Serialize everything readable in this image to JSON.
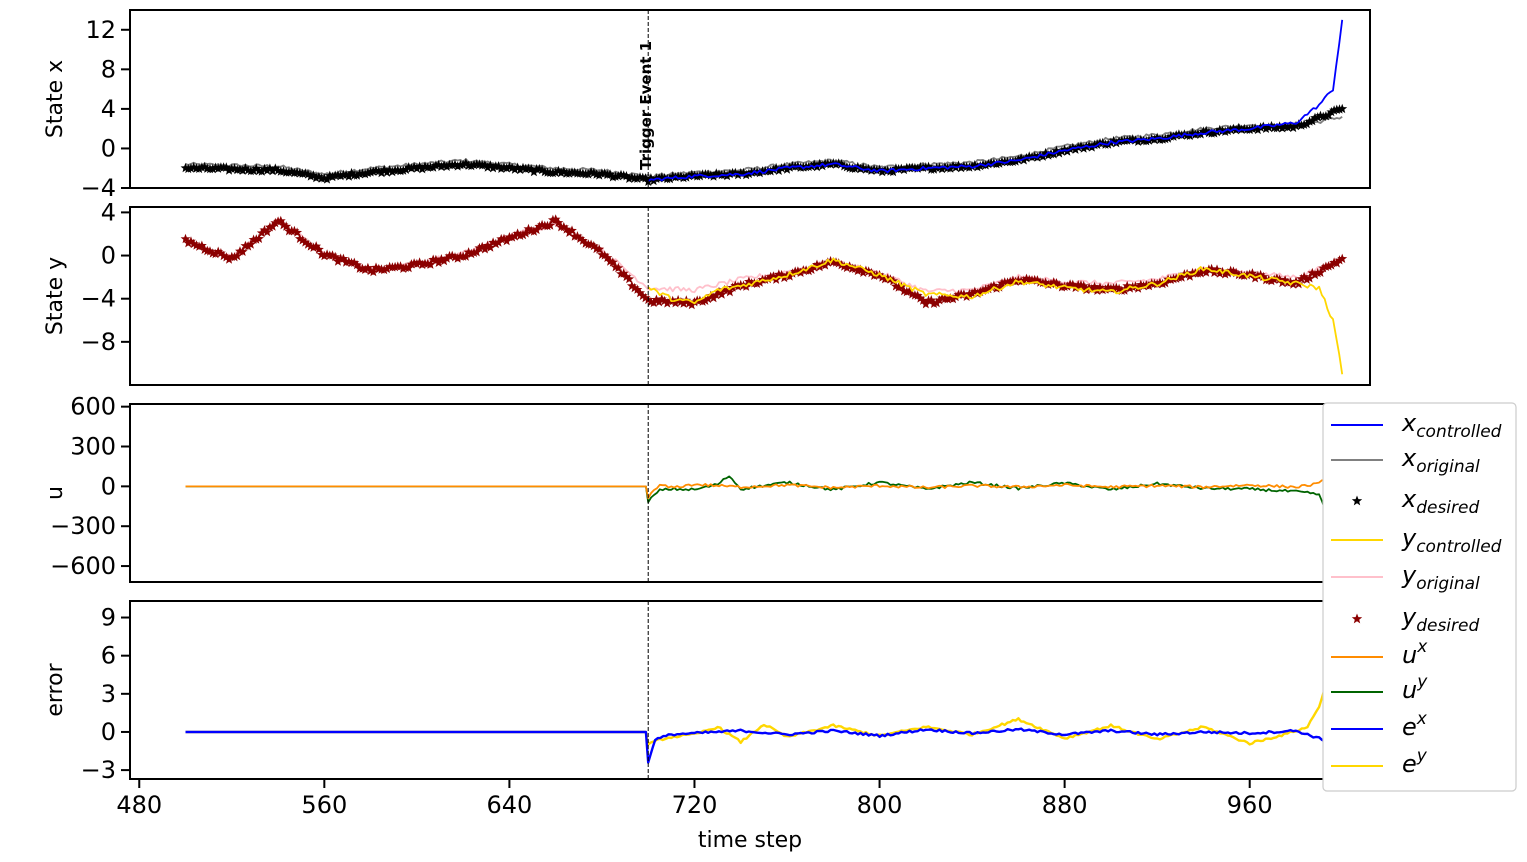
{
  "chart_data": [
    {
      "type": "line",
      "panel": "state-x",
      "ylabel": "State x",
      "xlim": [
        476,
        1012
      ],
      "ylim": [
        -4,
        14
      ],
      "yticks": [
        -4,
        0,
        4,
        8,
        12
      ],
      "ytick_labels": [
        "−4",
        "0",
        "4",
        "8",
        "12"
      ],
      "annotation": {
        "text": "Trigger Event 1",
        "x": 700
      },
      "series": [
        {
          "key": "x_original",
          "color": "#808080",
          "marker": "none",
          "x": [
            500,
            520,
            540,
            560,
            580,
            600,
            620,
            640,
            660,
            680,
            700,
            720,
            740,
            760,
            780,
            800,
            820,
            840,
            860,
            880,
            900,
            920,
            940,
            960,
            980,
            1000
          ],
          "y": [
            -1.6,
            -1.7,
            -1.8,
            -2.6,
            -2.0,
            -1.6,
            -1.2,
            -1.6,
            -2.0,
            -2.2,
            -2.8,
            -2.4,
            -2.2,
            -1.6,
            -1.2,
            -1.9,
            -1.6,
            -1.4,
            -0.8,
            0.2,
            1.0,
            1.4,
            2.0,
            2.4,
            2.2,
            3.2
          ]
        },
        {
          "key": "x_desired",
          "color": "#000000",
          "marker": "star",
          "x": [
            500,
            520,
            540,
            560,
            580,
            600,
            620,
            640,
            660,
            680,
            700,
            720,
            740,
            760,
            780,
            800,
            820,
            840,
            860,
            880,
            900,
            920,
            940,
            960,
            980,
            1000
          ],
          "y": [
            -2.0,
            -2.1,
            -2.2,
            -3.0,
            -2.4,
            -2.0,
            -1.6,
            -2.0,
            -2.4,
            -2.6,
            -3.2,
            -2.8,
            -2.6,
            -2.0,
            -1.6,
            -2.3,
            -2.0,
            -1.8,
            -1.2,
            -0.2,
            0.6,
            1.0,
            1.6,
            2.0,
            2.2,
            4.0
          ]
        },
        {
          "key": "x_controlled",
          "color": "#0000ff",
          "marker": "none",
          "x": [
            700,
            720,
            740,
            760,
            780,
            800,
            820,
            840,
            860,
            880,
            900,
            920,
            940,
            960,
            980,
            990,
            996,
            1000
          ],
          "y": [
            -3.2,
            -2.8,
            -2.6,
            -2.0,
            -1.6,
            -2.3,
            -2.0,
            -1.8,
            -1.2,
            -0.2,
            0.6,
            1.0,
            1.6,
            2.0,
            2.6,
            4.4,
            6.0,
            13.0
          ]
        }
      ]
    },
    {
      "type": "line",
      "panel": "state-y",
      "ylabel": "State y",
      "xlim": [
        476,
        1012
      ],
      "ylim": [
        -12,
        4.5
      ],
      "yticks": [
        -8,
        -4,
        0,
        4
      ],
      "ytick_labels": [
        "−8",
        "−4",
        "0",
        "4"
      ],
      "series": [
        {
          "key": "y_original",
          "color": "#ffc0cb",
          "marker": "none",
          "x": [
            500,
            520,
            540,
            560,
            580,
            600,
            620,
            640,
            660,
            680,
            700,
            720,
            740,
            760,
            780,
            800,
            820,
            840,
            860,
            880,
            900,
            920,
            940,
            960,
            980,
            1000
          ],
          "y": [
            1.2,
            -0.2,
            3.3,
            0.2,
            -1.2,
            -0.7,
            0.2,
            1.8,
            3.0,
            0.5,
            -3.0,
            -3.2,
            -2.2,
            -1.5,
            -0.5,
            -1.6,
            -3.3,
            -3.2,
            -2.0,
            -2.4,
            -2.6,
            -2.2,
            -1.2,
            -1.6,
            -2.0,
            -0.4
          ]
        },
        {
          "key": "y_desired",
          "color": "#8b0000",
          "marker": "star",
          "x": [
            500,
            520,
            540,
            560,
            580,
            600,
            620,
            640,
            660,
            680,
            700,
            720,
            740,
            760,
            780,
            800,
            820,
            840,
            860,
            880,
            900,
            920,
            940,
            960,
            980,
            1000
          ],
          "y": [
            1.4,
            -0.3,
            3.2,
            0.1,
            -1.4,
            -0.9,
            0.0,
            1.6,
            3.2,
            0.2,
            -4.2,
            -4.4,
            -2.8,
            -1.8,
            -0.6,
            -1.8,
            -4.4,
            -3.6,
            -2.2,
            -2.8,
            -3.2,
            -2.6,
            -1.4,
            -1.8,
            -2.6,
            -0.3
          ]
        },
        {
          "key": "y_controlled",
          "color": "#ffd700",
          "marker": "none",
          "x": [
            700,
            710,
            720,
            730,
            740,
            760,
            780,
            800,
            820,
            840,
            860,
            880,
            900,
            920,
            940,
            960,
            980,
            990,
            996,
            1000
          ],
          "y": [
            -3.0,
            -4.0,
            -4.4,
            -3.2,
            -2.8,
            -1.8,
            -0.4,
            -1.8,
            -3.6,
            -3.8,
            -2.4,
            -3.0,
            -3.4,
            -2.6,
            -1.2,
            -1.9,
            -2.6,
            -3.0,
            -6.0,
            -11.0
          ]
        }
      ]
    },
    {
      "type": "line",
      "panel": "u",
      "ylabel": "u",
      "xlim": [
        476,
        1012
      ],
      "ylim": [
        -720,
        620
      ],
      "yticks": [
        -600,
        -300,
        0,
        300,
        600
      ],
      "ytick_labels": [
        "−600",
        "−300",
        "0",
        "300",
        "600"
      ],
      "series": [
        {
          "key": "u_y",
          "color": "#006400",
          "marker": "none",
          "x": [
            500,
            699,
            700,
            705,
            710,
            720,
            730,
            735,
            740,
            760,
            780,
            800,
            820,
            840,
            860,
            880,
            900,
            920,
            940,
            960,
            980,
            990,
            994,
            998,
            1000
          ],
          "y": [
            0,
            0,
            -110,
            -30,
            -20,
            -25,
            15,
            80,
            -20,
            30,
            -25,
            30,
            -20,
            30,
            -15,
            25,
            -25,
            20,
            -15,
            -20,
            -40,
            -60,
            -250,
            -200,
            -680
          ]
        },
        {
          "key": "u_x",
          "color": "#ff8c00",
          "marker": "none",
          "x": [
            500,
            699,
            700,
            705,
            710,
            720,
            740,
            760,
            780,
            800,
            820,
            840,
            860,
            880,
            900,
            920,
            940,
            960,
            980,
            990,
            996,
            1000
          ],
          "y": [
            0,
            0,
            -80,
            10,
            -10,
            15,
            -5,
            10,
            -10,
            5,
            -10,
            5,
            -5,
            10,
            -5,
            5,
            -5,
            10,
            -5,
            20,
            100,
            570
          ]
        }
      ]
    },
    {
      "type": "line",
      "panel": "error",
      "ylabel": "error",
      "xlabel": "time step",
      "xlim": [
        476,
        1012
      ],
      "ylim": [
        -3.7,
        10.3
      ],
      "yticks": [
        -3,
        0,
        3,
        6,
        9
      ],
      "ytick_labels": [
        "−3",
        "0",
        "3",
        "6",
        "9"
      ],
      "xticks": [
        480,
        560,
        640,
        720,
        800,
        880,
        960
      ],
      "xtick_labels": [
        "480",
        "560",
        "640",
        "720",
        "800",
        "880",
        "960"
      ],
      "series": [
        {
          "key": "e_y",
          "color": "#ffd700",
          "marker": "none",
          "x": [
            500,
            699,
            700,
            705,
            710,
            720,
            730,
            740,
            750,
            760,
            780,
            800,
            820,
            840,
            860,
            880,
            900,
            920,
            940,
            960,
            975,
            985,
            990,
            995,
            1000
          ],
          "y": [
            0,
            0,
            -1.0,
            -0.6,
            -0.4,
            -0.2,
            0.4,
            -0.8,
            0.6,
            -0.4,
            0.5,
            -0.3,
            0.4,
            -0.2,
            1.0,
            -0.5,
            0.5,
            -0.6,
            0.4,
            -0.9,
            -0.2,
            0.4,
            2.0,
            5.0,
            9.8
          ]
        },
        {
          "key": "e_x",
          "color": "#0000ff",
          "marker": "none",
          "x": [
            500,
            699,
            700,
            703,
            710,
            720,
            740,
            760,
            780,
            800,
            820,
            840,
            860,
            880,
            900,
            920,
            940,
            960,
            980,
            990,
            996,
            1000
          ],
          "y": [
            0,
            0,
            -2.4,
            -0.6,
            -0.2,
            -0.1,
            0.1,
            -0.2,
            0.1,
            -0.3,
            0.2,
            -0.1,
            0.2,
            -0.2,
            0.1,
            -0.2,
            0.0,
            -0.1,
            0.1,
            -0.5,
            -1.0,
            -3.0
          ]
        }
      ]
    }
  ],
  "legend": {
    "placement": "right",
    "entries": [
      {
        "base": "x",
        "sub": "controlled",
        "sup": "",
        "color": "#0000ff",
        "style": "line"
      },
      {
        "base": "x",
        "sub": "original",
        "sup": "",
        "color": "#808080",
        "style": "line"
      },
      {
        "base": "x",
        "sub": "desired",
        "sup": "",
        "color": "#000000",
        "style": "star"
      },
      {
        "base": "y",
        "sub": "controlled",
        "sup": "",
        "color": "#ffd700",
        "style": "line"
      },
      {
        "base": "y",
        "sub": "original",
        "sup": "",
        "color": "#ffc0cb",
        "style": "line"
      },
      {
        "base": "y",
        "sub": "desired",
        "sup": "",
        "color": "#8b0000",
        "style": "star"
      },
      {
        "base": "u",
        "sub": "",
        "sup": "x",
        "color": "#ff8c00",
        "style": "line"
      },
      {
        "base": "u",
        "sub": "",
        "sup": "y",
        "color": "#006400",
        "style": "line"
      },
      {
        "base": "e",
        "sub": "",
        "sup": "x",
        "color": "#0000ff",
        "style": "line"
      },
      {
        "base": "e",
        "sub": "",
        "sup": "y",
        "color": "#ffd700",
        "style": "line"
      }
    ]
  }
}
